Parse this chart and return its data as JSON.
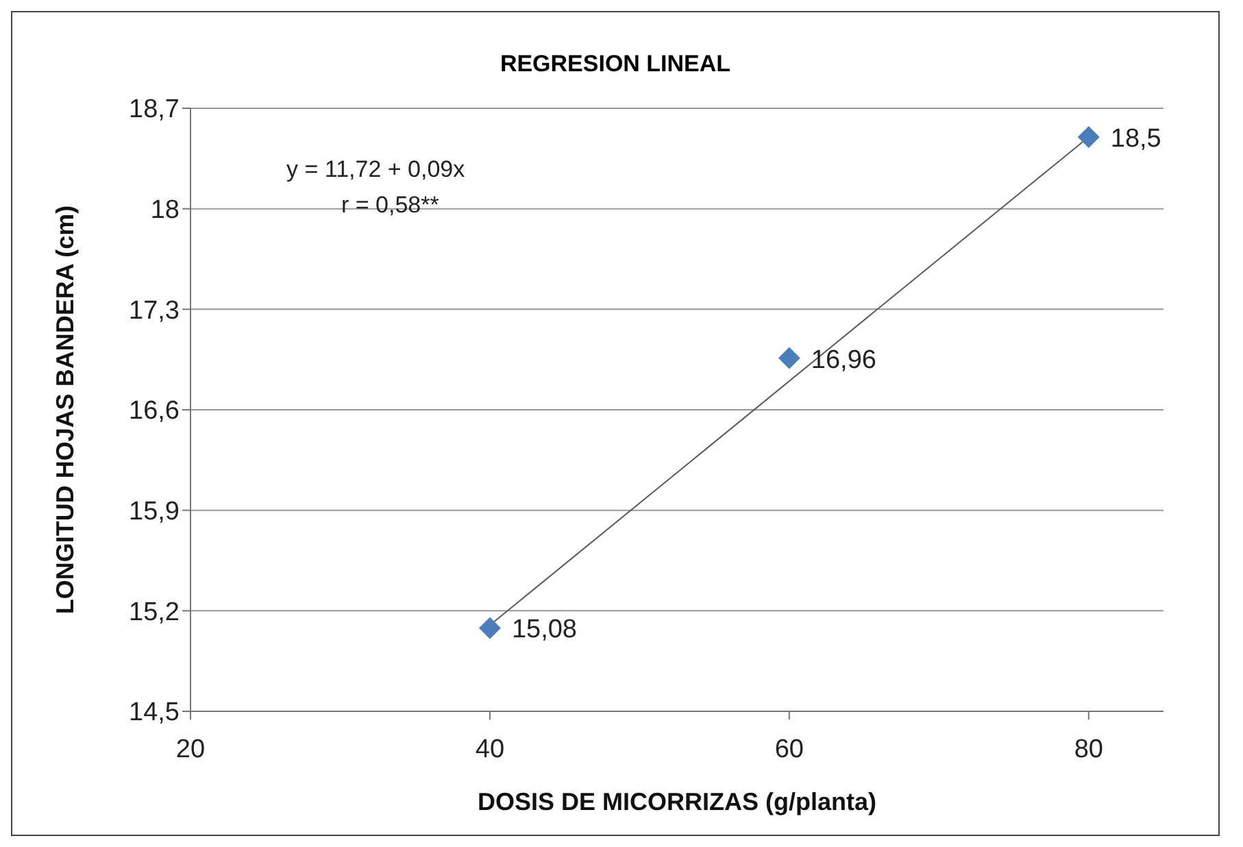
{
  "chart_data": {
    "type": "scatter",
    "title": "REGRESION LINEAL",
    "xlabel": "DOSIS DE MICORRIZAS (g/planta)",
    "ylabel": "LONGITUD HOJAS BANDERA (cm)",
    "annotations": [
      "y = 11,72 + 0,09x",
      "r = 0,58**"
    ],
    "series": [
      {
        "color": "#4a7ebb",
        "x": [
          40,
          60,
          80
        ],
        "values": [
          15.08,
          16.96,
          18.5
        ],
        "value_labels": [
          "15,08",
          "16,96",
          "18,5"
        ],
        "marker": "diamond"
      },
      {
        "type": "line",
        "color": "#595959",
        "x": [
          40,
          80
        ],
        "values": [
          15.1,
          18.5
        ],
        "marker": "none",
        "line_style": "solid"
      }
    ],
    "xlim": [
      20,
      85
    ],
    "xticks": [
      20,
      40,
      60,
      80
    ],
    "ylim": [
      14.5,
      18.7
    ],
    "yticks": [
      {
        "value": 14.5,
        "label": "14,5"
      },
      {
        "value": 15.2,
        "label": "15,2"
      },
      {
        "value": 15.9,
        "label": "15,9"
      },
      {
        "value": 16.6,
        "label": "16,6"
      },
      {
        "value": 17.3,
        "label": "17,3"
      },
      18,
      {
        "value": 18.7,
        "label": "18,7"
      }
    ],
    "grid": "y",
    "legend": false
  }
}
